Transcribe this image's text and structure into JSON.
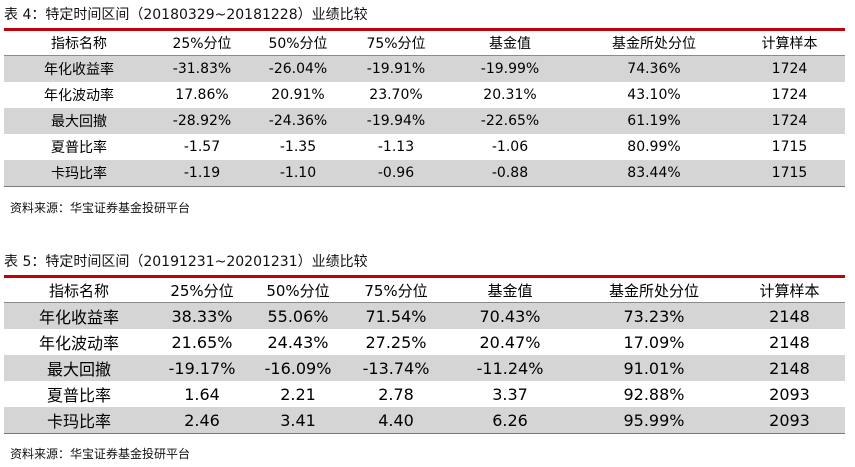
{
  "table4": {
    "caption": "表 4：特定时间区间（20180329~20181228）业绩比较",
    "headers": [
      "指标名称",
      "25%分位",
      "50%分位",
      "75%分位",
      "基金值",
      "基金所处分位",
      "计算样本"
    ],
    "rows": [
      [
        "年化收益率",
        "-31.83%",
        "-26.04%",
        "-19.91%",
        "-19.99%",
        "74.36%",
        "1724"
      ],
      [
        "年化波动率",
        "17.86%",
        "20.91%",
        "23.70%",
        "20.31%",
        "43.10%",
        "1724"
      ],
      [
        "最大回撤",
        "-28.92%",
        "-24.36%",
        "-19.94%",
        "-22.65%",
        "61.19%",
        "1724"
      ],
      [
        "夏普比率",
        "-1.57",
        "-1.35",
        "-1.13",
        "-1.06",
        "80.99%",
        "1715"
      ],
      [
        "卡玛比率",
        "-1.19",
        "-1.10",
        "-0.96",
        "-0.88",
        "83.44%",
        "1715"
      ]
    ],
    "source": "资料来源：华宝证券基金投研平台"
  },
  "table5": {
    "caption": "表 5：特定时间区间（20191231~20201231）业绩比较",
    "headers": [
      "指标名称",
      "25%分位",
      "50%分位",
      "75%分位",
      "基金值",
      "基金所处分位",
      "计算样本"
    ],
    "rows": [
      [
        "年化收益率",
        "38.33%",
        "55.06%",
        "71.54%",
        "70.43%",
        "73.23%",
        "2148"
      ],
      [
        "年化波动率",
        "21.65%",
        "24.43%",
        "27.25%",
        "20.47%",
        "17.09%",
        "2148"
      ],
      [
        "最大回撤",
        "-19.17%",
        "-16.09%",
        "-13.74%",
        "-11.24%",
        "91.01%",
        "2148"
      ],
      [
        "夏普比率",
        "1.64",
        "2.21",
        "2.78",
        "3.37",
        "92.88%",
        "2093"
      ],
      [
        "卡玛比率",
        "2.46",
        "3.41",
        "4.40",
        "6.26",
        "95.99%",
        "2093"
      ]
    ],
    "source": "资料来源：华宝证券基金投研平台"
  }
}
